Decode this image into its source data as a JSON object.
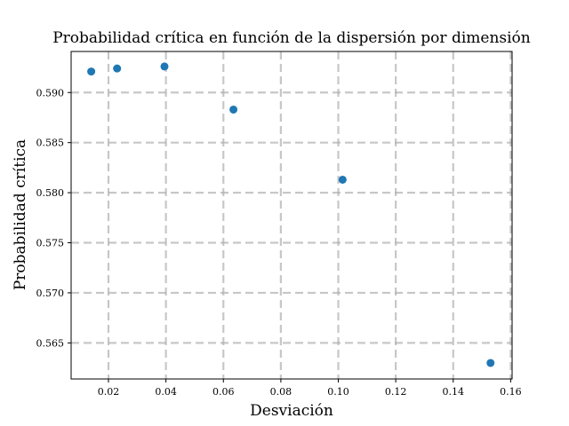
{
  "chart_data": {
    "type": "scatter",
    "title": "Probabilidad crítica en función de la dispersión por dimensión",
    "xlabel": "Desviación",
    "ylabel": "Probabilidad crítica",
    "xlim": [
      0.007,
      0.1605
    ],
    "ylim": [
      0.5614,
      0.5941
    ],
    "xticks": [
      0.02,
      0.04,
      0.06,
      0.08,
      0.1,
      0.12,
      0.14,
      0.16
    ],
    "yticks": [
      0.565,
      0.57,
      0.575,
      0.58,
      0.585,
      0.59
    ],
    "xtick_labels": [
      "0.02",
      "0.04",
      "0.06",
      "0.08",
      "0.10",
      "0.12",
      "0.14",
      "0.16"
    ],
    "ytick_labels": [
      "0.565",
      "0.570",
      "0.575",
      "0.580",
      "0.585",
      "0.590"
    ],
    "grid": true,
    "series": [
      {
        "color": "#1f77b4",
        "x": [
          0.014,
          0.023,
          0.0395,
          0.0635,
          0.1015,
          0.153
        ],
        "y": [
          0.5921,
          0.5924,
          0.5926,
          0.5883,
          0.5813,
          0.563
        ]
      }
    ]
  }
}
